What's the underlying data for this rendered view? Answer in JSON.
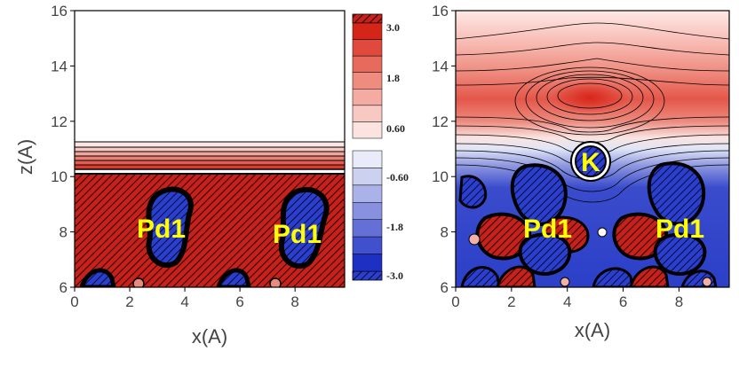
{
  "chart_data": [
    {
      "type": "heatmap",
      "title": "",
      "xlabel": "x(A)",
      "ylabel": "z(A)",
      "xlim": [
        0,
        9.8
      ],
      "ylim": [
        6,
        16
      ],
      "x_ticks": [
        "0",
        "2",
        "4",
        "6",
        "8"
      ],
      "y_ticks": [
        "6",
        "8",
        "10",
        "12",
        "14",
        "16"
      ],
      "annotations": [
        "Pd1",
        "Pd1"
      ],
      "surface_level_z": 10.0,
      "colors": {
        "positive": "#d9261c",
        "negative": "#1f3fd0",
        "contour": "#000000"
      }
    },
    {
      "type": "heatmap",
      "title": "",
      "xlabel": "x(A)",
      "ylabel": "",
      "xlim": [
        0,
        9.8
      ],
      "ylim": [
        6,
        16
      ],
      "x_ticks": [
        "0",
        "2",
        "4",
        "6",
        "8"
      ],
      "y_ticks": [
        "6",
        "8",
        "10",
        "12",
        "14",
        "16"
      ],
      "annotations": [
        "K",
        "Pd1",
        "Pd1"
      ],
      "adsorbate_position": {
        "x": 4.85,
        "z": 10.5
      },
      "colors": {
        "positive": "#d9261c",
        "negative": "#1f3fd0",
        "contour": "#000000"
      }
    }
  ],
  "colorbar": {
    "labels": [
      "3.0",
      "1.8",
      "0.60",
      "-0.60",
      "-1.8",
      "-3.0"
    ],
    "positive_colors": [
      "#d42618",
      "#df4a3c",
      "#e86a5c",
      "#ef8c80",
      "#f4aba1",
      "#f8c9c2",
      "#fbe3df"
    ],
    "negative_colors": [
      "#e9ebf8",
      "#ccd1f0",
      "#aab2e8",
      "#8791df",
      "#6570d6",
      "#4150cd",
      "#1e2fc4"
    ]
  }
}
